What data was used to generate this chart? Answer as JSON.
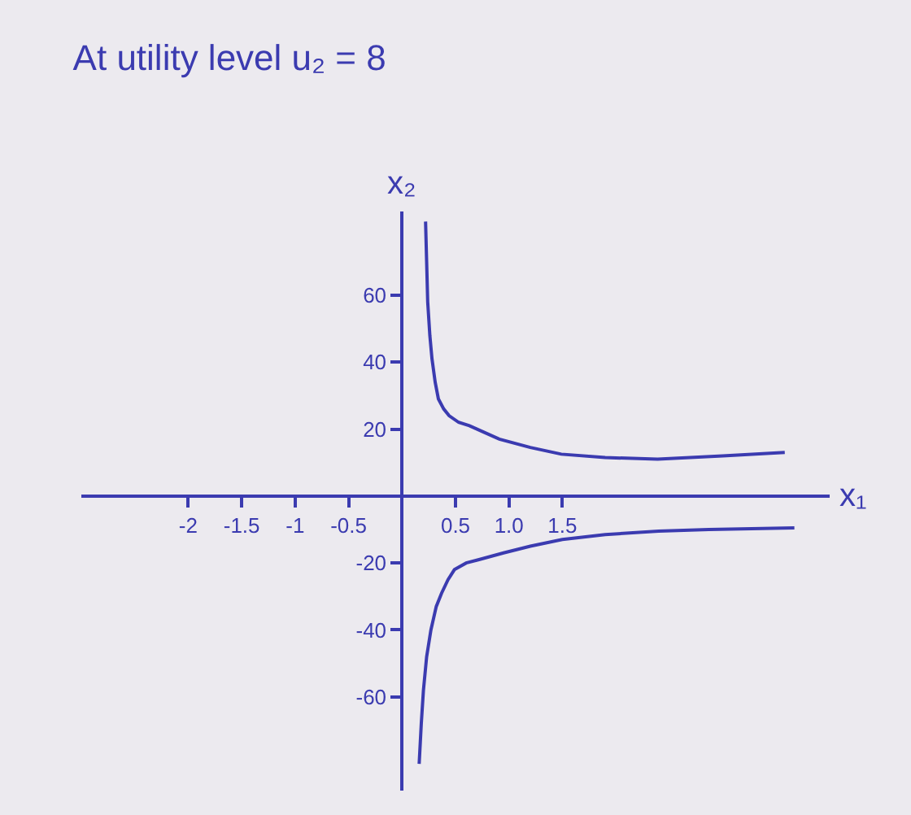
{
  "chart_data": {
    "type": "line",
    "title": "At utility level u₂ = 8",
    "xlabel": "x₁",
    "ylabel": "x₂",
    "xlim": [
      -3,
      4
    ],
    "ylim": [
      -88,
      85
    ],
    "xticks": [
      -2,
      -1.5,
      -1,
      -0.5,
      0.5,
      {
        "value": 1,
        "label": "1.0"
      },
      1.5
    ],
    "yticks": [
      -60,
      -40,
      -20,
      20,
      40,
      60
    ],
    "marker": "none",
    "series": [
      {
        "color": "#3b3bb0",
        "x": [
          0.22,
          0.23,
          0.24,
          0.26,
          0.28,
          0.31,
          0.34,
          0.39,
          0.44,
          0.53,
          0.63,
          0.77,
          0.91,
          1.2,
          1.49,
          1.9,
          2.39,
          3.0,
          3.58
        ],
        "values": [
          82,
          70,
          58,
          48,
          41,
          34,
          29,
          26,
          24,
          22,
          21,
          19,
          17,
          14.5,
          12.5,
          11.5,
          11,
          12,
          13
        ]
      },
      {
        "color": "#3b3bb0",
        "x": [
          0.16,
          0.18,
          0.2,
          0.23,
          0.27,
          0.32,
          0.37,
          0.43,
          0.49,
          0.6,
          0.72,
          0.95,
          1.2,
          1.5,
          1.9,
          2.4,
          2.87,
          3.67
        ],
        "values": [
          -80,
          -68,
          -58,
          -48,
          -40,
          -33,
          -29,
          -25,
          -22,
          -20,
          -19,
          -17,
          -15,
          -13,
          -11.5,
          -10.5,
          -10,
          -9.5
        ]
      }
    ]
  }
}
